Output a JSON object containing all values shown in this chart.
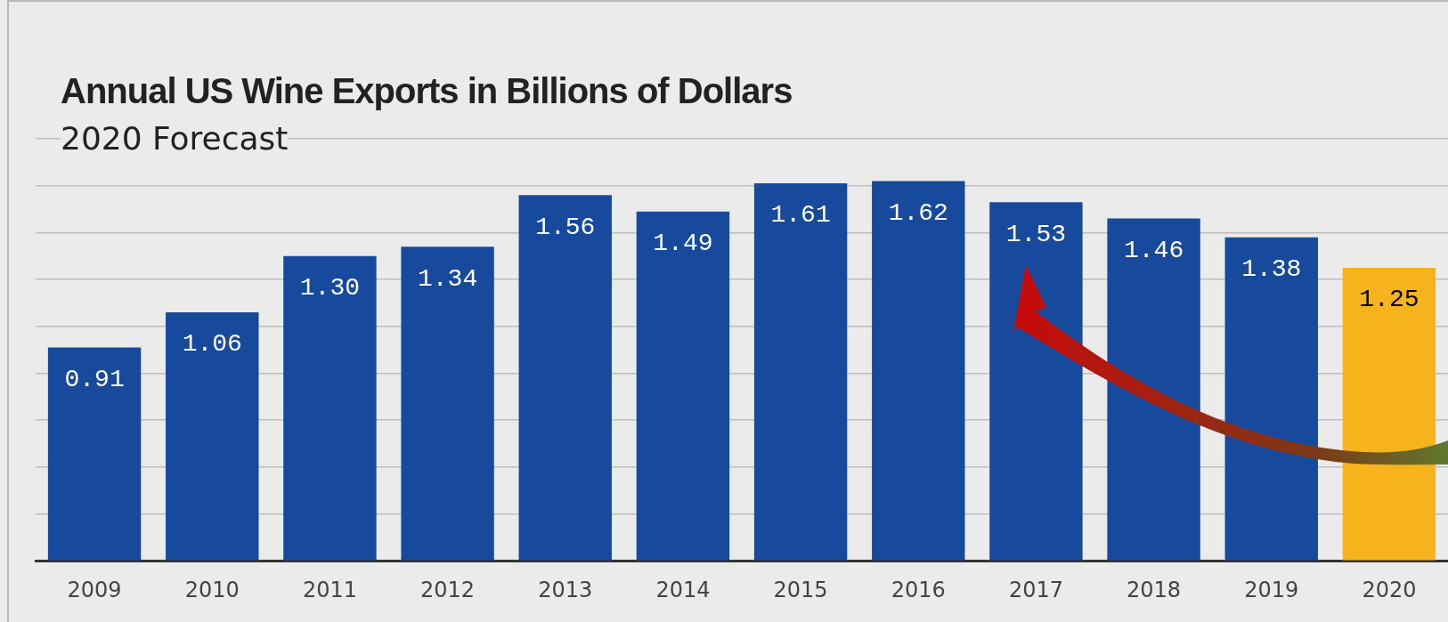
{
  "chart_data": {
    "type": "bar",
    "title": "Annual US Wine Exports in Billions of Dollars",
    "subtitle": "2020 Forecast",
    "categories": [
      "2009",
      "2010",
      "2011",
      "2012",
      "2013",
      "2014",
      "2015",
      "2016",
      "2017",
      "2018",
      "2019",
      "2020"
    ],
    "values": [
      0.91,
      1.06,
      1.3,
      1.34,
      1.56,
      1.49,
      1.61,
      1.62,
      1.53,
      1.46,
      1.38,
      1.25
    ],
    "colors": [
      "#174a9c",
      "#174a9c",
      "#174a9c",
      "#174a9c",
      "#174a9c",
      "#174a9c",
      "#174a9c",
      "#174a9c",
      "#174a9c",
      "#174a9c",
      "#174a9c",
      "#f7b31b"
    ],
    "ylim": [
      0,
      1.8
    ],
    "yticks": [
      {
        "value": 0,
        "label": null
      },
      {
        "value": 0.2,
        "label": null
      },
      {
        "value": 0.4,
        "label": null
      },
      {
        "value": 0.6,
        "label": null
      },
      {
        "value": 0.8,
        "label": null
      },
      {
        "value": 1.0,
        "label": null
      },
      {
        "value": 1.2,
        "label": null
      },
      {
        "value": 1.4,
        "label": null
      },
      {
        "value": 1.6,
        "label": null
      },
      {
        "value": 1.8,
        "label": null
      }
    ],
    "value_labels": [
      "0.91",
      "1.06",
      "1.30",
      "1.34",
      "1.56",
      "1.49",
      "1.61",
      "1.62",
      "1.53",
      "1.46",
      "1.38",
      "1.25"
    ],
    "grid": "y",
    "legend": false,
    "tick_labels": "x"
  }
}
